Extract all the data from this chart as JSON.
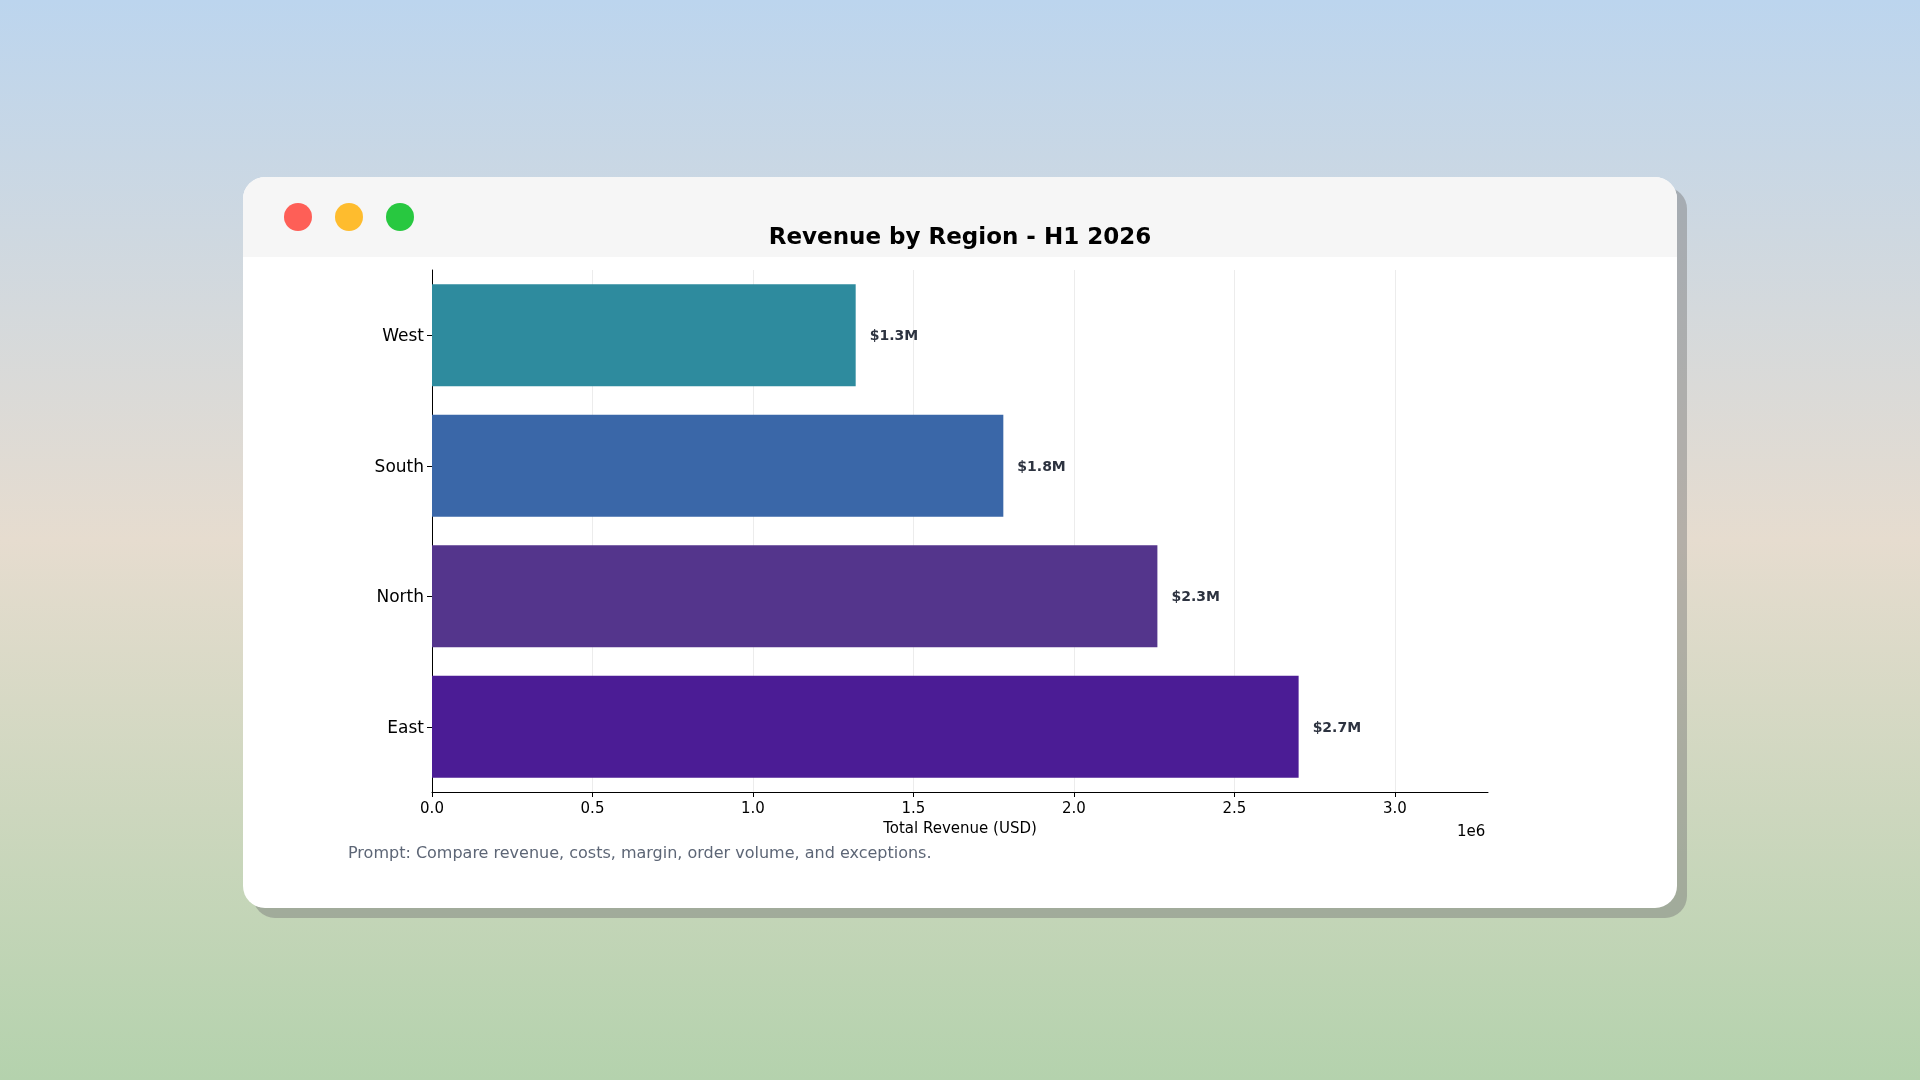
{
  "chart_data": {
    "type": "bar",
    "orientation": "horizontal",
    "title": "Revenue by Region - H1 2026",
    "xlabel": "Total Revenue (USD)",
    "categories": [
      "West",
      "South",
      "North",
      "East"
    ],
    "values": [
      1.32,
      1.78,
      2.26,
      2.7
    ],
    "colors": [
      "#2e8b9e",
      "#3a67a8",
      "#54358c",
      "#4b1c95"
    ],
    "value_labels": [
      "$1.3M",
      "$1.8M",
      "$2.3M",
      "$2.7M"
    ],
    "xlim": [
      0,
      3.29
    ],
    "xticks": [
      {
        "value": 0,
        "label": "0.0"
      },
      0.5,
      {
        "value": 1,
        "label": "1.0"
      },
      1.5,
      {
        "value": 2,
        "label": "2.0"
      },
      2.5,
      {
        "value": 3,
        "label": "3.0"
      }
    ],
    "grid": "x",
    "annotations": [
      "1e6",
      "Prompt: Compare revenue, costs, margin, order volume, and exceptions."
    ]
  }
}
